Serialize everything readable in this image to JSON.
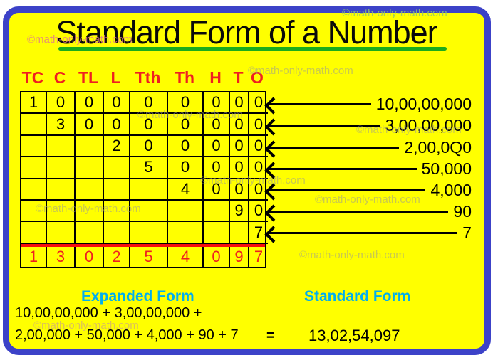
{
  "watermark_text": "©math-only-math.com",
  "title": {
    "text": "Standard Form of a Number"
  },
  "colors": {
    "background": "#FFFF00",
    "frame_blue": "#3C42C8",
    "underline_green": "#1CAC1C",
    "accent_red": "#EF2020",
    "separator_red": "#F60D0D",
    "label_cyan": "#00AEEF",
    "text_black": "#000000"
  },
  "place_value_table": {
    "headers": [
      "TC",
      "C",
      "TL",
      "L",
      "Tth",
      "Th",
      "H",
      "T",
      "O"
    ],
    "rows": [
      [
        "1",
        "0",
        "0",
        "0",
        "0",
        "0",
        "0",
        "0",
        "0"
      ],
      [
        "",
        "3",
        "0",
        "0",
        "0",
        "0",
        "0",
        "0",
        "0"
      ],
      [
        "",
        "",
        "",
        "2",
        "0",
        "0",
        "0",
        "0",
        "0"
      ],
      [
        "",
        "",
        "",
        "",
        "5",
        "0",
        "0",
        "0",
        "0"
      ],
      [
        "",
        "",
        "",
        "",
        "",
        "4",
        "0",
        "0",
        "0"
      ],
      [
        "",
        "",
        "",
        "",
        "",
        "",
        "",
        "9",
        "0"
      ],
      [
        "",
        "",
        "",
        "",
        "",
        "",
        "",
        "",
        "7"
      ]
    ],
    "result_row": [
      "1",
      "3",
      "0",
      "2",
      "5",
      "4",
      "0",
      "9",
      "7"
    ]
  },
  "arrow_values": [
    "10,00,00,000",
    "3,00,00,000",
    "2,00,0Q0",
    "50,000",
    "4,000",
    "90",
    "7"
  ],
  "expanded_form": {
    "label": "Expanded Form",
    "line1": "10,00,00,000 + 3,00,00,000 +",
    "line2": "2,00,000 + 50,000 + 4,000 + 90 + 7",
    "equals_sign": "="
  },
  "standard_form": {
    "label": "Standard Form",
    "value": "13,02,54,097"
  }
}
